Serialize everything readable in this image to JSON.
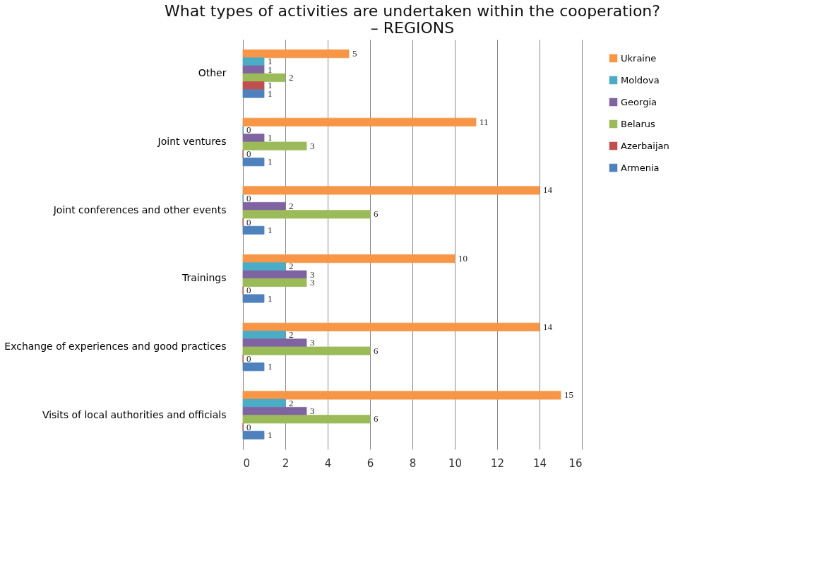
{
  "chart_data": {
    "type": "bar",
    "orientation": "horizontal",
    "title": [
      "What types of activities are undertaken within the cooperation?",
      "– REGIONS"
    ],
    "categories": [
      "Other",
      "Joint ventures",
      "Joint conferences and other events",
      "Trainings",
      "Exchange of experiences and good practices",
      "Visits of local authorities and officials"
    ],
    "series": [
      {
        "name": "Ukraine",
        "color": "#f79646",
        "values": [
          5,
          11,
          14,
          10,
          14,
          15
        ]
      },
      {
        "name": "Moldova",
        "color": "#4bacc6",
        "values": [
          1,
          0,
          0,
          2,
          2,
          2
        ]
      },
      {
        "name": "Georgia",
        "color": "#8064a2",
        "values": [
          1,
          1,
          2,
          3,
          3,
          3
        ]
      },
      {
        "name": "Belarus",
        "color": "#9bbb59",
        "values": [
          2,
          3,
          6,
          3,
          6,
          6
        ]
      },
      {
        "name": "Azerbaijan",
        "color": "#c0504d",
        "values": [
          1,
          0,
          0,
          0,
          0,
          0
        ]
      },
      {
        "name": "Armenia",
        "color": "#4f81bd",
        "values": [
          1,
          1,
          1,
          1,
          1,
          1
        ]
      }
    ],
    "xlim": [
      0,
      16
    ],
    "xticks": [
      0,
      2,
      4,
      6,
      8,
      10,
      12,
      14,
      16
    ],
    "grid": "x",
    "legend": "right",
    "data_labels": true
  }
}
